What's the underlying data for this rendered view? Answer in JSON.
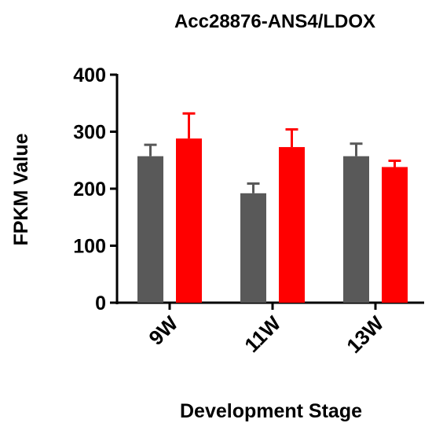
{
  "chart_data": {
    "type": "bar",
    "title": "Acc28876-ANS4/LDOX",
    "xlabel": "Development Stage",
    "ylabel": "FPKM Value",
    "ylim": [
      0,
      400
    ],
    "yticks": [
      0,
      100,
      200,
      300,
      400
    ],
    "categories": [
      "9W",
      "11W",
      "13W"
    ],
    "series": [
      {
        "color": "#595959",
        "values": [
          257,
          192,
          257
        ],
        "errors": [
          20,
          17,
          22
        ]
      },
      {
        "color": "#ff0000",
        "values": [
          288,
          273,
          238
        ],
        "errors": [
          44,
          31,
          11
        ]
      }
    ],
    "grid": false,
    "legend": "none"
  }
}
